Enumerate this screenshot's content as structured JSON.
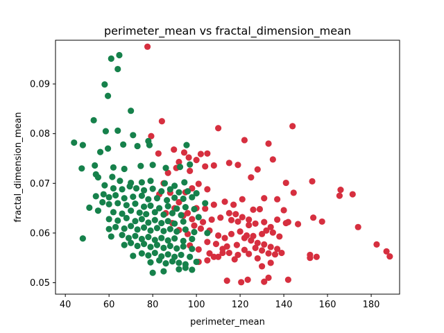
{
  "chart_data": {
    "type": "scatter",
    "title": "perimeter_mean vs fractal_dimension_mean",
    "xlabel": "perimeter_mean",
    "ylabel": "fractal_dimension_mean",
    "xlim": [
      35.5,
      193
    ],
    "ylim": [
      0.0477,
      0.0988
    ],
    "xticks": [
      {
        "value": 40,
        "label": "40"
      },
      {
        "value": 60,
        "label": "60"
      },
      {
        "value": 80,
        "label": "80"
      },
      {
        "value": 100,
        "label": "100"
      },
      {
        "value": 120,
        "label": "120"
      },
      {
        "value": 140,
        "label": "140"
      },
      {
        "value": 160,
        "label": "160"
      },
      {
        "value": 180,
        "label": "180"
      }
    ],
    "yticks": [
      {
        "value": 0.05,
        "label": "0.05"
      },
      {
        "value": 0.06,
        "label": "0.06"
      },
      {
        "value": 0.07,
        "label": "0.07"
      },
      {
        "value": 0.08,
        "label": "0.08"
      },
      {
        "value": 0.09,
        "label": "0.09"
      }
    ],
    "grid": false,
    "series": [
      {
        "color": "#d62f3f",
        "points": [
          [
            77.6,
            0.0975
          ],
          [
            84.2,
            0.0825
          ],
          [
            110.0,
            0.0811
          ],
          [
            144.0,
            0.0815
          ],
          [
            122.0,
            0.0787
          ],
          [
            133.0,
            0.078
          ],
          [
            89.7,
            0.0768
          ],
          [
            94.4,
            0.0762
          ],
          [
            96.5,
            0.0752
          ],
          [
            102.0,
            0.0759
          ],
          [
            105.0,
            0.076
          ],
          [
            82.6,
            0.076
          ],
          [
            79.3,
            0.0795
          ],
          [
            100.0,
            0.0747
          ],
          [
            92.0,
            0.0743
          ],
          [
            135.0,
            0.0748
          ],
          [
            115.0,
            0.0741
          ],
          [
            119.0,
            0.0737
          ],
          [
            128.0,
            0.0728
          ],
          [
            125.0,
            0.0712
          ],
          [
            104.0,
            0.0734
          ],
          [
            108.0,
            0.0736
          ],
          [
            97.0,
            0.0725
          ],
          [
            90.8,
            0.0731
          ],
          [
            141.0,
            0.0701
          ],
          [
            144.5,
            0.0681
          ],
          [
            153.0,
            0.0704
          ],
          [
            166.0,
            0.0687
          ],
          [
            165.5,
            0.0675
          ],
          [
            171.5,
            0.0678
          ],
          [
            140.0,
            0.0646
          ],
          [
            142.0,
            0.0622
          ],
          [
            146.5,
            0.0618
          ],
          [
            153.5,
            0.0631
          ],
          [
            157.5,
            0.0623
          ],
          [
            174.0,
            0.0612
          ],
          [
            182.5,
            0.0577
          ],
          [
            187.0,
            0.0563
          ],
          [
            188.5,
            0.0553
          ],
          [
            152.0,
            0.0556
          ],
          [
            152.0,
            0.055
          ],
          [
            155.0,
            0.0552
          ],
          [
            142.0,
            0.0506
          ],
          [
            133.0,
            0.051
          ],
          [
            131.0,
            0.0502
          ],
          [
            123.5,
            0.0506
          ],
          [
            120.5,
            0.0501
          ],
          [
            114.0,
            0.0504
          ],
          [
            117.5,
            0.0547
          ],
          [
            124.0,
            0.0558
          ],
          [
            128.0,
            0.0549
          ],
          [
            130.0,
            0.0533
          ],
          [
            134.0,
            0.054
          ],
          [
            136.0,
            0.0557
          ],
          [
            139.0,
            0.056
          ],
          [
            101.0,
            0.0542
          ],
          [
            105.0,
            0.0545
          ],
          [
            108.0,
            0.0552
          ],
          [
            112.0,
            0.056
          ],
          [
            114.0,
            0.0573
          ],
          [
            118.5,
            0.0576
          ],
          [
            122.0,
            0.059
          ],
          [
            126.0,
            0.0594
          ],
          [
            130.0,
            0.0598
          ],
          [
            132.0,
            0.0605
          ],
          [
            135.0,
            0.0601
          ],
          [
            138.0,
            0.0593
          ],
          [
            99.0,
            0.0615
          ],
          [
            103.0,
            0.0622
          ],
          [
            107.0,
            0.0627
          ],
          [
            111.0,
            0.0631
          ],
          [
            116.0,
            0.0626
          ],
          [
            119.0,
            0.0623
          ],
          [
            124.0,
            0.0616
          ],
          [
            127.0,
            0.0619
          ],
          [
            131.0,
            0.0622
          ],
          [
            134.0,
            0.0612
          ],
          [
            137.0,
            0.0627
          ],
          [
            141.0,
            0.062
          ],
          [
            96.0,
            0.064
          ],
          [
            100.0,
            0.065
          ],
          [
            104.0,
            0.0649
          ],
          [
            108.0,
            0.0657
          ],
          [
            113.0,
            0.0663
          ],
          [
            117.0,
            0.0657
          ],
          [
            121.0,
            0.0668
          ],
          [
            126.0,
            0.0647
          ],
          [
            129.0,
            0.0648
          ],
          [
            131.0,
            0.067
          ],
          [
            137.0,
            0.0668
          ],
          [
            92.0,
            0.0662
          ],
          [
            95.0,
            0.0682
          ],
          [
            98.0,
            0.069
          ],
          [
            101.0,
            0.0699
          ],
          [
            105.0,
            0.0688
          ],
          [
            88.0,
            0.0681
          ],
          [
            85.0,
            0.07
          ],
          [
            87.0,
            0.0721
          ],
          [
            83.0,
            0.0678
          ],
          [
            90.0,
            0.065
          ],
          [
            94.0,
            0.0635
          ],
          [
            98.0,
            0.0628
          ],
          [
            102.0,
            0.0609
          ],
          [
            106.0,
            0.0605
          ],
          [
            110.0,
            0.0595
          ],
          [
            113.0,
            0.059
          ],
          [
            116.0,
            0.0598
          ],
          [
            120.0,
            0.0603
          ],
          [
            123.0,
            0.0595
          ],
          [
            125.0,
            0.0585
          ],
          [
            128.0,
            0.058
          ],
          [
            131.0,
            0.0577
          ],
          [
            134.0,
            0.0572
          ],
          [
            137.0,
            0.0568
          ],
          [
            105.0,
            0.0582
          ],
          [
            109.0,
            0.0578
          ],
          [
            112.0,
            0.0568
          ],
          [
            115.0,
            0.056
          ],
          [
            119.0,
            0.0556
          ],
          [
            122.0,
            0.0566
          ],
          [
            127.0,
            0.057
          ],
          [
            130.0,
            0.0565
          ],
          [
            133.0,
            0.0559
          ],
          [
            97.0,
            0.0575
          ],
          [
            101.0,
            0.0567
          ],
          [
            106.0,
            0.0559
          ],
          [
            110.0,
            0.0552
          ],
          [
            96.0,
            0.0598
          ],
          [
            92.0,
            0.0606
          ],
          [
            89.0,
            0.062
          ],
          [
            86.0,
            0.064
          ],
          [
            115.0,
            0.064
          ],
          [
            118.0,
            0.0638
          ],
          [
            121.0,
            0.0632
          ],
          [
            124.0,
            0.0627
          ]
        ]
      },
      {
        "color": "#16814b",
        "points": [
          [
            64.7,
            0.0958
          ],
          [
            61.0,
            0.0951
          ],
          [
            64.0,
            0.093
          ],
          [
            58.0,
            0.0899
          ],
          [
            59.5,
            0.0876
          ],
          [
            70.0,
            0.0846
          ],
          [
            53.0,
            0.0827
          ],
          [
            58.5,
            0.0805
          ],
          [
            64.0,
            0.0806
          ],
          [
            71.0,
            0.0797
          ],
          [
            44.0,
            0.0782
          ],
          [
            48.0,
            0.0777
          ],
          [
            59.5,
            0.077
          ],
          [
            56.0,
            0.0763
          ],
          [
            66.5,
            0.0778
          ],
          [
            73.0,
            0.0775
          ],
          [
            78.0,
            0.0785
          ],
          [
            95.5,
            0.0777
          ],
          [
            78.5,
            0.0777
          ],
          [
            47.5,
            0.073
          ],
          [
            53.5,
            0.0736
          ],
          [
            62.0,
            0.0732
          ],
          [
            67.0,
            0.0729
          ],
          [
            74.5,
            0.0735
          ],
          [
            80.0,
            0.0737
          ],
          [
            86.0,
            0.0731
          ],
          [
            92.5,
            0.0733
          ],
          [
            97.0,
            0.0738
          ],
          [
            54.0,
            0.0718
          ],
          [
            55.0,
            0.0712
          ],
          [
            61.5,
            0.0713
          ],
          [
            65.0,
            0.0705
          ],
          [
            70.0,
            0.0701
          ],
          [
            75.0,
            0.0702
          ],
          [
            79.0,
            0.0705
          ],
          [
            85.5,
            0.07
          ],
          [
            90.0,
            0.0695
          ],
          [
            94.5,
            0.0702
          ],
          [
            58.0,
            0.0696
          ],
          [
            62.0,
            0.069
          ],
          [
            66.0,
            0.0688
          ],
          [
            69.5,
            0.0694
          ],
          [
            72.5,
            0.069
          ],
          [
            76.0,
            0.0686
          ],
          [
            80.0,
            0.0689
          ],
          [
            84.0,
            0.0684
          ],
          [
            88.0,
            0.0688
          ],
          [
            92.0,
            0.0682
          ],
          [
            96.0,
            0.0684
          ],
          [
            54.0,
            0.0674
          ],
          [
            57.5,
            0.0678
          ],
          [
            60.0,
            0.0672
          ],
          [
            63.0,
            0.0676
          ],
          [
            67.0,
            0.067
          ],
          [
            71.0,
            0.0673
          ],
          [
            75.0,
            0.0675
          ],
          [
            78.0,
            0.0668
          ],
          [
            82.0,
            0.067
          ],
          [
            86.5,
            0.0666
          ],
          [
            90.0,
            0.0671
          ],
          [
            94.0,
            0.0669
          ],
          [
            98.0,
            0.0672
          ],
          [
            57.0,
            0.0662
          ],
          [
            60.0,
            0.0658
          ],
          [
            64.0,
            0.066
          ],
          [
            68.0,
            0.0656
          ],
          [
            72.0,
            0.0659
          ],
          [
            76.0,
            0.0653
          ],
          [
            79.0,
            0.0655
          ],
          [
            83.0,
            0.065
          ],
          [
            87.0,
            0.0654
          ],
          [
            91.0,
            0.0649
          ],
          [
            95.0,
            0.0652
          ],
          [
            99.0,
            0.0648
          ],
          [
            51.0,
            0.0651
          ],
          [
            55.0,
            0.0645
          ],
          [
            62.0,
            0.0642
          ],
          [
            66.0,
            0.0639
          ],
          [
            70.0,
            0.0645
          ],
          [
            74.0,
            0.0641
          ],
          [
            77.0,
            0.0638
          ],
          [
            81.0,
            0.0642
          ],
          [
            85.0,
            0.0637
          ],
          [
            89.0,
            0.064
          ],
          [
            93.0,
            0.0636
          ],
          [
            60.0,
            0.0628
          ],
          [
            64.0,
            0.0625
          ],
          [
            68.0,
            0.063
          ],
          [
            72.0,
            0.0624
          ],
          [
            75.0,
            0.0628
          ],
          [
            78.0,
            0.0621
          ],
          [
            81.0,
            0.0626
          ],
          [
            84.0,
            0.062
          ],
          [
            87.0,
            0.0624
          ],
          [
            90.0,
            0.0619
          ],
          [
            94.0,
            0.0623
          ],
          [
            60.0,
            0.0608
          ],
          [
            63.0,
            0.0612
          ],
          [
            67.0,
            0.0609
          ],
          [
            70.0,
            0.0614
          ],
          [
            73.0,
            0.0607
          ],
          [
            76.0,
            0.0611
          ],
          [
            79.0,
            0.0605
          ],
          [
            82.0,
            0.061
          ],
          [
            85.0,
            0.0604
          ],
          [
            88.0,
            0.0608
          ],
          [
            91.0,
            0.0603
          ],
          [
            95.0,
            0.0607
          ],
          [
            99.0,
            0.0602
          ],
          [
            61.0,
            0.0593
          ],
          [
            66.0,
            0.0596
          ],
          [
            69.0,
            0.059
          ],
          [
            72.0,
            0.0594
          ],
          [
            75.0,
            0.0588
          ],
          [
            78.0,
            0.0592
          ],
          [
            81.0,
            0.0586
          ],
          [
            84.0,
            0.059
          ],
          [
            87.0,
            0.0585
          ],
          [
            90.0,
            0.0589
          ],
          [
            94.0,
            0.0584
          ],
          [
            98.0,
            0.0588
          ],
          [
            48.0,
            0.0589
          ],
          [
            67.0,
            0.0576
          ],
          [
            70.0,
            0.058
          ],
          [
            73.0,
            0.0574
          ],
          [
            76.0,
            0.0578
          ],
          [
            79.0,
            0.0572
          ],
          [
            82.0,
            0.0576
          ],
          [
            85.0,
            0.057
          ],
          [
            88.0,
            0.0574
          ],
          [
            91.0,
            0.0569
          ],
          [
            94.0,
            0.0573
          ],
          [
            98.0,
            0.0568
          ],
          [
            71.0,
            0.0554
          ],
          [
            75.0,
            0.0559
          ],
          [
            78.0,
            0.0555
          ],
          [
            81.0,
            0.056
          ],
          [
            84.0,
            0.0553
          ],
          [
            87.0,
            0.0557
          ],
          [
            90.0,
            0.0552
          ],
          [
            93.0,
            0.0556
          ],
          [
            97.0,
            0.0552
          ],
          [
            79.0,
            0.0541
          ],
          [
            83.0,
            0.0545
          ],
          [
            86.0,
            0.0539
          ],
          [
            89.0,
            0.0543
          ],
          [
            92.0,
            0.054
          ],
          [
            95.0,
            0.0537
          ],
          [
            100.0,
            0.0542
          ],
          [
            80.0,
            0.052
          ],
          [
            85.0,
            0.0523
          ],
          [
            92.0,
            0.0527
          ],
          [
            95.0,
            0.053
          ],
          [
            98.0,
            0.0526
          ],
          [
            105.0,
            0.06
          ],
          [
            101.0,
            0.0632
          ],
          [
            104.0,
            0.066
          ],
          [
            100.0,
            0.068
          ]
        ]
      }
    ]
  }
}
